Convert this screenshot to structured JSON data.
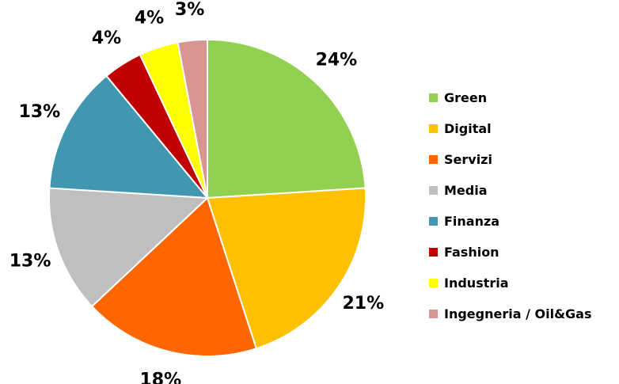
{
  "chart_data": {
    "type": "pie",
    "start_angle_deg": 0,
    "direction": "clockwise",
    "legend_position": "right",
    "slices": [
      {
        "label": "Green",
        "value": 24,
        "value_label": "24%",
        "color": "#92d050"
      },
      {
        "label": "Digital",
        "value": 21,
        "value_label": "21%",
        "color": "#ffc000"
      },
      {
        "label": "Servizi",
        "value": 18,
        "value_label": "18%",
        "color": "#ff6600"
      },
      {
        "label": "Media",
        "value": 13,
        "value_label": "13%",
        "color": "#bfbfbf"
      },
      {
        "label": "Finanza",
        "value": 13,
        "value_label": "13%",
        "color": "#4197b0"
      },
      {
        "label": "Fashion",
        "value": 4,
        "value_label": "4%",
        "color": "#c00000"
      },
      {
        "label": "Industria",
        "value": 4,
        "value_label": "4%",
        "color": "#ffff00"
      },
      {
        "label": "Ingegneria / Oil&Gas",
        "value": 3,
        "value_label": "3%",
        "color": "#d99594"
      }
    ]
  }
}
